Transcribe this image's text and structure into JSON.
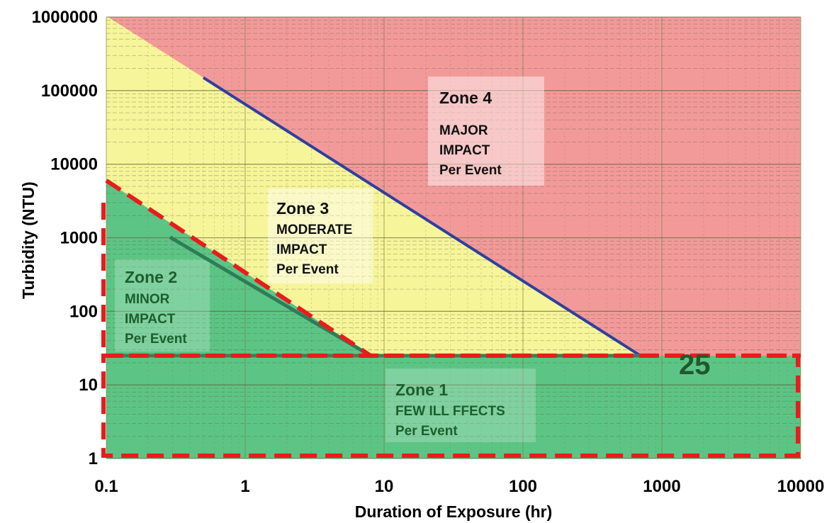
{
  "chart_data": {
    "type": "area",
    "xlabel": "Duration of Exposure (hr)",
    "ylabel": "Turbidity (NTU)",
    "x_scale": "log",
    "y_scale": "log",
    "xlim": [
      0.1,
      10000
    ],
    "ylim": [
      1,
      1000000
    ],
    "x_ticks": [
      "0.1",
      "1",
      "10",
      "100",
      "1000",
      "10000"
    ],
    "y_ticks": [
      "1",
      "10",
      "100",
      "1000",
      "10000",
      "100000",
      "1000000"
    ],
    "grid": true,
    "boundaries": [
      {
        "between": "Zone 3 / Zone 4",
        "x": [
          0.5,
          700
        ],
        "y": [
          150000,
          25
        ],
        "color": "#2f3fa0"
      },
      {
        "between": "Zone 2 / Zone 3",
        "x": [
          0.1,
          8
        ],
        "y": [
          6000,
          25
        ],
        "color": "#e81c1c",
        "dashed": true
      },
      {
        "between": "Zone 1 limit",
        "x": [
          0.1,
          10000
        ],
        "y": [
          25,
          25
        ],
        "color": "#e81c1c",
        "dashed": true
      }
    ],
    "threshold_label": "25",
    "zones": [
      {
        "title": "Zone 4",
        "lines": [
          "MAJOR",
          "IMPACT",
          "Per Event"
        ],
        "color": "#f29a9a"
      },
      {
        "title": "Zone 3",
        "lines": [
          "MODERATE",
          "IMPACT",
          "Per Event"
        ],
        "color": "#f6f59a"
      },
      {
        "title": "Zone 2",
        "lines": [
          "MINOR",
          "IMPACT",
          "Per Event"
        ],
        "color": "#5cc585"
      },
      {
        "title": "Zone 1",
        "lines": [
          "FEW ILL FFECTS",
          "Per Event"
        ],
        "color": "#5cc585"
      }
    ]
  }
}
